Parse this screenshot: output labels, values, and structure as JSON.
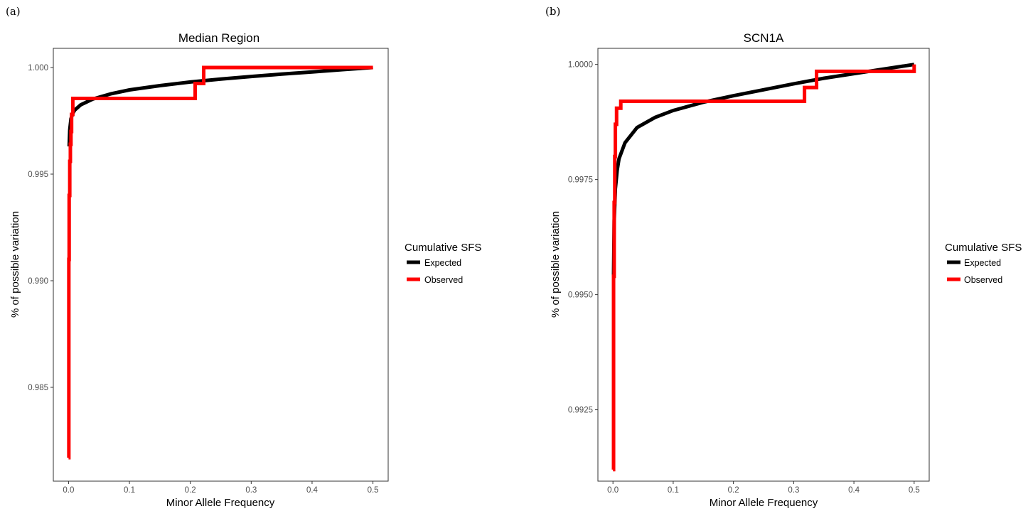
{
  "chart_data": [
    {
      "panel_label": "(a)",
      "type": "line",
      "title": "Median Region",
      "xlabel": "Minor Allele Frequency",
      "ylabel": "% of possible variation",
      "xlim": [
        -0.025,
        0.525
      ],
      "ylim": [
        0.9806,
        1.0009
      ],
      "xticks": [
        0,
        0.1,
        0.2,
        0.3,
        0.4,
        0.5
      ],
      "xtick_labels": [
        "0.0",
        "0.1",
        "0.2",
        "0.3",
        "0.4",
        "0.5"
      ],
      "yticks": [
        0.985,
        0.99,
        0.995,
        1.0
      ],
      "ytick_labels": [
        "0.985",
        "0.990",
        "0.995",
        "1.000"
      ],
      "grid": false,
      "legend": {
        "title": "Cumulative SFS",
        "placement": "right"
      },
      "series": [
        {
          "name": "Expected",
          "color": "#000000",
          "shape": "step",
          "x": [
            0.001,
            0.002,
            0.004,
            0.007,
            0.01,
            0.02,
            0.04,
            0.07,
            0.1,
            0.15,
            0.2,
            0.25,
            0.3,
            0.35,
            0.4,
            0.45,
            0.5
          ],
          "y": [
            0.9963,
            0.99708,
            0.9976,
            0.99785,
            0.998,
            0.99825,
            0.99852,
            0.99877,
            0.99895,
            0.99915,
            0.99932,
            0.99946,
            0.99958,
            0.99969,
            0.99979,
            0.9999,
            1.0
          ]
        },
        {
          "name": "Observed",
          "color": "#ff0000",
          "shape": "step",
          "x": [
            0.0,
            0.0005,
            0.001,
            0.002,
            0.003,
            0.004,
            0.005,
            0.007,
            0.208,
            0.222,
            0.5
          ],
          "y": [
            0.9817,
            0.991,
            0.994,
            0.9956,
            0.9964,
            0.997,
            0.9978,
            0.99855,
            0.99925,
            1.0,
            1.0
          ]
        }
      ]
    },
    {
      "panel_label": "(b)",
      "type": "line",
      "title": "SCN1A",
      "xlabel": "Minor Allele Frequency",
      "ylabel": "% of possible variation",
      "xlim": [
        -0.025,
        0.525
      ],
      "ylim": [
        0.99095,
        1.00035
      ],
      "xticks": [
        0,
        0.1,
        0.2,
        0.3,
        0.4,
        0.5
      ],
      "xtick_labels": [
        "0.0",
        "0.1",
        "0.2",
        "0.3",
        "0.4",
        "0.5"
      ],
      "yticks": [
        0.9925,
        0.995,
        0.9975,
        1.0
      ],
      "ytick_labels": [
        "0.9925",
        "0.9950",
        "0.9975",
        "1.0000"
      ],
      "grid": false,
      "legend": {
        "title": "Cumulative SFS",
        "placement": "right"
      },
      "series": [
        {
          "name": "Expected",
          "color": "#000000",
          "shape": "step",
          "x": [
            0.001,
            0.002,
            0.004,
            0.007,
            0.01,
            0.02,
            0.04,
            0.07,
            0.1,
            0.15,
            0.2,
            0.25,
            0.3,
            0.35,
            0.4,
            0.45,
            0.5
          ],
          "y": [
            0.9954,
            0.9966,
            0.9973,
            0.9977,
            0.99795,
            0.9983,
            0.99863,
            0.99885,
            0.999,
            0.99918,
            0.99932,
            0.99945,
            0.99958,
            0.9997,
            0.9998,
            0.9999,
            1.0
          ]
        },
        {
          "name": "Observed",
          "color": "#ff0000",
          "shape": "step",
          "x": [
            0.0,
            0.001,
            0.002,
            0.003,
            0.004,
            0.006,
            0.013,
            0.318,
            0.338,
            0.5
          ],
          "y": [
            0.9912,
            0.9954,
            0.997,
            0.998,
            0.9987,
            0.99905,
            0.9992,
            0.9995,
            0.99985,
            1.0
          ]
        }
      ]
    }
  ]
}
